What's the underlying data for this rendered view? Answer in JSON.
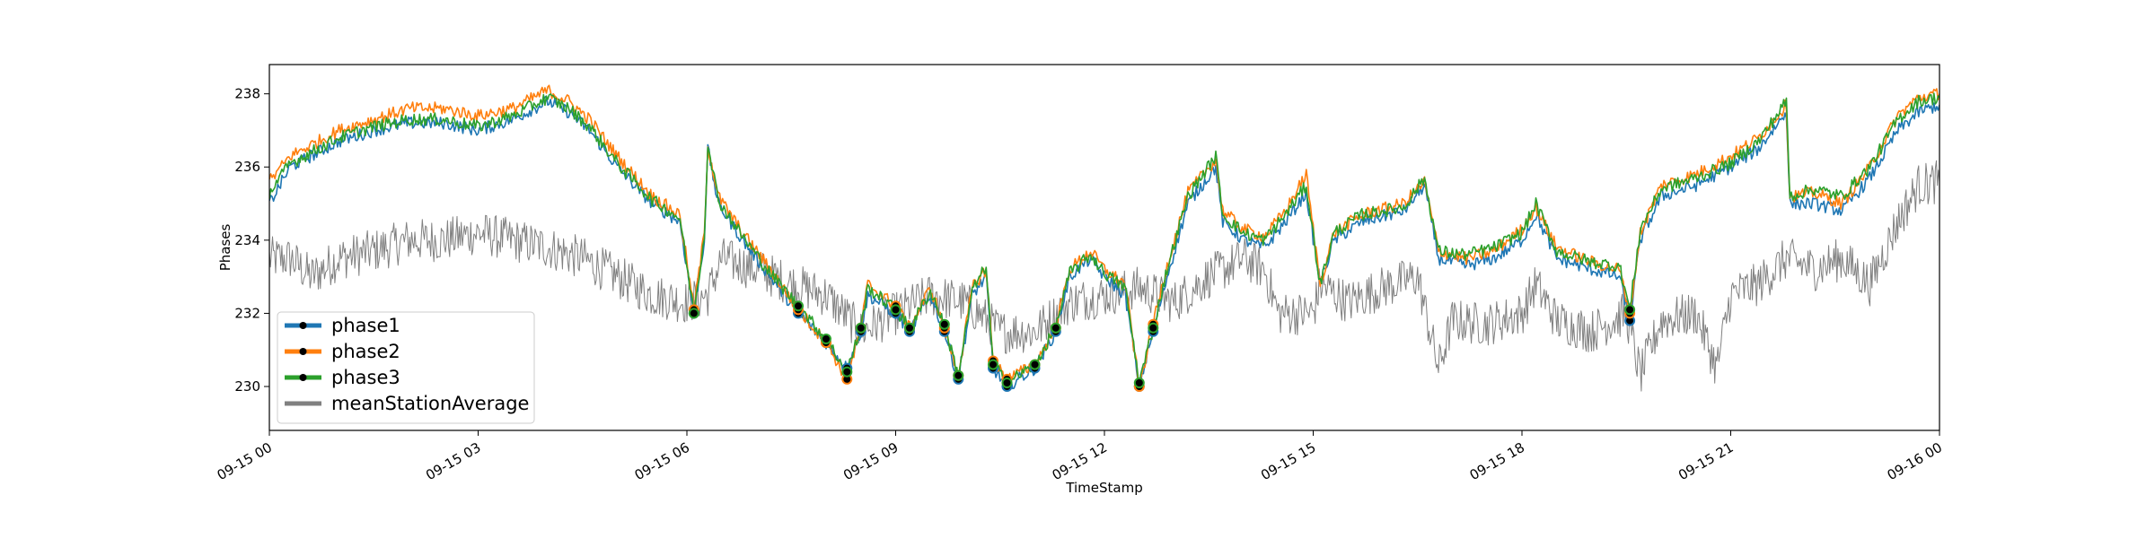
{
  "chart_data": {
    "type": "line",
    "title": "",
    "xlabel": "TimeStamp",
    "ylabel": "Phases",
    "x_ticks": [
      "09-15 00",
      "09-15 03",
      "09-15 06",
      "09-15 09",
      "09-15 12",
      "09-15 15",
      "09-15 18",
      "09-15 21",
      "09-16 00"
    ],
    "y_ticks": [
      "230",
      "232",
      "234",
      "236",
      "238"
    ],
    "x_range_hours": [
      0,
      24
    ],
    "ylim": [
      228.8,
      238.8
    ],
    "grid": false,
    "legend_position": "lower-left",
    "series": [
      {
        "name": "phase1",
        "color": "#1f77b4",
        "marker": "black dots at low points",
        "points": [
          [
            0.0,
            235.0
          ],
          [
            0.3,
            236.0
          ],
          [
            0.6,
            236.3
          ],
          [
            1.0,
            236.7
          ],
          [
            1.5,
            237.0
          ],
          [
            2.0,
            237.2
          ],
          [
            2.5,
            237.2
          ],
          [
            3.0,
            237.0
          ],
          [
            3.5,
            237.3
          ],
          [
            4.0,
            237.8
          ],
          [
            4.3,
            237.5
          ],
          [
            4.6,
            237.0
          ],
          [
            5.0,
            236.0
          ],
          [
            5.5,
            235.0
          ],
          [
            5.9,
            234.5
          ],
          [
            6.1,
            232.0
          ],
          [
            6.25,
            234.0
          ],
          [
            6.3,
            236.5
          ],
          [
            6.45,
            235.0
          ],
          [
            6.8,
            234.0
          ],
          [
            7.2,
            233.0
          ],
          [
            7.6,
            232.0
          ],
          [
            8.0,
            231.2
          ],
          [
            8.3,
            230.5
          ],
          [
            8.5,
            231.5
          ],
          [
            8.6,
            232.5
          ],
          [
            9.0,
            232.0
          ],
          [
            9.2,
            231.5
          ],
          [
            9.5,
            232.5
          ],
          [
            9.7,
            231.5
          ],
          [
            9.9,
            230.2
          ],
          [
            10.1,
            232.5
          ],
          [
            10.3,
            233.0
          ],
          [
            10.4,
            230.5
          ],
          [
            10.6,
            230.0
          ],
          [
            11.0,
            230.5
          ],
          [
            11.3,
            231.5
          ],
          [
            11.5,
            233.0
          ],
          [
            11.8,
            233.5
          ],
          [
            12.0,
            233.0
          ],
          [
            12.3,
            232.5
          ],
          [
            12.5,
            230.0
          ],
          [
            12.7,
            231.5
          ],
          [
            12.9,
            233.0
          ],
          [
            13.2,
            235.0
          ],
          [
            13.6,
            236.0
          ],
          [
            13.7,
            234.5
          ],
          [
            14.0,
            234.0
          ],
          [
            14.3,
            233.8
          ],
          [
            14.6,
            234.5
          ],
          [
            14.9,
            235.3
          ],
          [
            15.1,
            232.8
          ],
          [
            15.3,
            234.0
          ],
          [
            15.7,
            234.5
          ],
          [
            16.3,
            234.8
          ],
          [
            16.6,
            235.5
          ],
          [
            16.8,
            233.5
          ],
          [
            17.2,
            233.3
          ],
          [
            17.6,
            233.5
          ],
          [
            18.0,
            234.0
          ],
          [
            18.2,
            234.7
          ],
          [
            18.5,
            233.5
          ],
          [
            19.0,
            233.2
          ],
          [
            19.4,
            233.0
          ],
          [
            19.55,
            231.8
          ],
          [
            19.7,
            234.0
          ],
          [
            20.0,
            235.2
          ],
          [
            20.5,
            235.5
          ],
          [
            21.0,
            236.0
          ],
          [
            21.4,
            236.5
          ],
          [
            21.8,
            237.5
          ],
          [
            21.85,
            235.0
          ],
          [
            22.2,
            235.0
          ],
          [
            22.6,
            234.8
          ],
          [
            23.0,
            235.7
          ],
          [
            23.4,
            237.0
          ],
          [
            23.7,
            237.5
          ],
          [
            24.0,
            237.7
          ]
        ]
      },
      {
        "name": "phase2",
        "color": "#ff7f0e",
        "marker": "black dots at low points",
        "points": [
          [
            0.0,
            235.6
          ],
          [
            0.3,
            236.3
          ],
          [
            0.6,
            236.6
          ],
          [
            1.0,
            237.0
          ],
          [
            1.5,
            237.3
          ],
          [
            2.0,
            237.6
          ],
          [
            2.5,
            237.6
          ],
          [
            3.0,
            237.4
          ],
          [
            3.5,
            237.6
          ],
          [
            4.0,
            238.1
          ],
          [
            4.3,
            237.8
          ],
          [
            4.6,
            237.3
          ],
          [
            5.0,
            236.3
          ],
          [
            5.5,
            235.2
          ],
          [
            5.9,
            234.7
          ],
          [
            6.1,
            232.1
          ],
          [
            6.25,
            234.2
          ],
          [
            6.3,
            236.6
          ],
          [
            6.45,
            235.2
          ],
          [
            6.8,
            234.2
          ],
          [
            7.2,
            233.2
          ],
          [
            7.6,
            232.1
          ],
          [
            8.0,
            231.2
          ],
          [
            8.3,
            230.2
          ],
          [
            8.5,
            231.6
          ],
          [
            8.6,
            232.8
          ],
          [
            9.0,
            232.2
          ],
          [
            9.2,
            231.6
          ],
          [
            9.5,
            232.7
          ],
          [
            9.7,
            231.6
          ],
          [
            9.9,
            230.3
          ],
          [
            10.1,
            232.7
          ],
          [
            10.3,
            233.2
          ],
          [
            10.4,
            230.7
          ],
          [
            10.6,
            230.2
          ],
          [
            11.0,
            230.6
          ],
          [
            11.3,
            231.6
          ],
          [
            11.5,
            233.2
          ],
          [
            11.8,
            233.7
          ],
          [
            12.0,
            233.2
          ],
          [
            12.3,
            232.8
          ],
          [
            12.5,
            230.0
          ],
          [
            12.7,
            231.7
          ],
          [
            12.9,
            233.3
          ],
          [
            13.2,
            235.3
          ],
          [
            13.6,
            236.2
          ],
          [
            13.7,
            234.8
          ],
          [
            14.0,
            234.3
          ],
          [
            14.3,
            234.1
          ],
          [
            14.6,
            234.8
          ],
          [
            14.9,
            235.8
          ],
          [
            15.1,
            232.8
          ],
          [
            15.3,
            234.2
          ],
          [
            15.7,
            234.7
          ],
          [
            16.3,
            235.0
          ],
          [
            16.6,
            235.6
          ],
          [
            16.8,
            233.7
          ],
          [
            17.2,
            233.5
          ],
          [
            17.6,
            233.7
          ],
          [
            18.0,
            234.3
          ],
          [
            18.2,
            234.9
          ],
          [
            18.5,
            233.8
          ],
          [
            19.0,
            233.4
          ],
          [
            19.4,
            233.2
          ],
          [
            19.55,
            232.0
          ],
          [
            19.7,
            234.2
          ],
          [
            20.0,
            235.5
          ],
          [
            20.5,
            235.8
          ],
          [
            21.0,
            236.3
          ],
          [
            21.4,
            236.8
          ],
          [
            21.8,
            237.7
          ],
          [
            21.85,
            235.2
          ],
          [
            22.2,
            235.3
          ],
          [
            22.6,
            235.0
          ],
          [
            23.0,
            236.0
          ],
          [
            23.4,
            237.4
          ],
          [
            23.7,
            237.9
          ],
          [
            24.0,
            238.0
          ]
        ]
      },
      {
        "name": "phase3",
        "color": "#2ca02c",
        "marker": "black dots at low points",
        "points": [
          [
            0.0,
            235.3
          ],
          [
            0.3,
            236.1
          ],
          [
            0.6,
            236.4
          ],
          [
            1.0,
            236.8
          ],
          [
            1.5,
            237.1
          ],
          [
            2.0,
            237.3
          ],
          [
            2.5,
            237.3
          ],
          [
            3.0,
            237.1
          ],
          [
            3.5,
            237.4
          ],
          [
            4.0,
            237.9
          ],
          [
            4.3,
            237.6
          ],
          [
            4.6,
            237.1
          ],
          [
            5.0,
            236.1
          ],
          [
            5.5,
            235.1
          ],
          [
            5.9,
            234.6
          ],
          [
            6.1,
            232.0
          ],
          [
            6.25,
            234.1
          ],
          [
            6.3,
            236.7
          ],
          [
            6.45,
            235.1
          ],
          [
            6.8,
            234.1
          ],
          [
            7.2,
            233.1
          ],
          [
            7.6,
            232.2
          ],
          [
            8.0,
            231.3
          ],
          [
            8.3,
            230.4
          ],
          [
            8.5,
            231.6
          ],
          [
            8.6,
            232.7
          ],
          [
            9.0,
            232.1
          ],
          [
            9.2,
            231.6
          ],
          [
            9.5,
            232.6
          ],
          [
            9.7,
            231.7
          ],
          [
            9.9,
            230.3
          ],
          [
            10.1,
            232.6
          ],
          [
            10.3,
            233.3
          ],
          [
            10.4,
            230.6
          ],
          [
            10.6,
            230.1
          ],
          [
            11.0,
            230.6
          ],
          [
            11.3,
            231.6
          ],
          [
            11.5,
            233.1
          ],
          [
            11.8,
            233.6
          ],
          [
            12.0,
            233.1
          ],
          [
            12.3,
            232.7
          ],
          [
            12.5,
            230.1
          ],
          [
            12.7,
            231.6
          ],
          [
            12.9,
            233.2
          ],
          [
            13.2,
            235.2
          ],
          [
            13.6,
            236.3
          ],
          [
            13.7,
            234.7
          ],
          [
            14.0,
            234.2
          ],
          [
            14.3,
            234.0
          ],
          [
            14.6,
            234.7
          ],
          [
            14.9,
            235.5
          ],
          [
            15.1,
            232.8
          ],
          [
            15.3,
            234.2
          ],
          [
            15.7,
            234.7
          ],
          [
            16.3,
            234.9
          ],
          [
            16.6,
            235.7
          ],
          [
            16.8,
            233.7
          ],
          [
            17.2,
            233.6
          ],
          [
            17.6,
            233.8
          ],
          [
            18.0,
            234.2
          ],
          [
            18.2,
            235.0
          ],
          [
            18.5,
            233.7
          ],
          [
            19.0,
            233.4
          ],
          [
            19.4,
            233.3
          ],
          [
            19.55,
            232.1
          ],
          [
            19.7,
            234.3
          ],
          [
            20.0,
            235.4
          ],
          [
            20.5,
            235.7
          ],
          [
            21.0,
            236.1
          ],
          [
            21.4,
            236.7
          ],
          [
            21.8,
            237.8
          ],
          [
            21.85,
            235.2
          ],
          [
            22.2,
            235.4
          ],
          [
            22.6,
            235.2
          ],
          [
            23.0,
            236.0
          ],
          [
            23.4,
            237.3
          ],
          [
            23.7,
            237.8
          ],
          [
            24.0,
            237.9
          ]
        ]
      },
      {
        "name": "meanStationAverage",
        "color": "#808080",
        "points": [
          [
            0.0,
            233.5
          ],
          [
            0.3,
            233.5
          ],
          [
            0.6,
            233.0
          ],
          [
            1.0,
            233.5
          ],
          [
            1.5,
            233.7
          ],
          [
            2.0,
            234.0
          ],
          [
            2.5,
            234.0
          ],
          [
            3.0,
            234.2
          ],
          [
            3.5,
            234.0
          ],
          [
            4.0,
            233.8
          ],
          [
            4.5,
            233.5
          ],
          [
            5.0,
            233.0
          ],
          [
            5.5,
            232.5
          ],
          [
            6.0,
            232.3
          ],
          [
            6.3,
            232.5
          ],
          [
            6.5,
            233.5
          ],
          [
            7.0,
            233.2
          ],
          [
            7.5,
            232.8
          ],
          [
            8.0,
            232.5
          ],
          [
            8.5,
            231.5
          ],
          [
            9.0,
            232.0
          ],
          [
            9.5,
            232.5
          ],
          [
            10.0,
            232.3
          ],
          [
            10.5,
            231.5
          ],
          [
            11.0,
            231.5
          ],
          [
            11.5,
            232.3
          ],
          [
            12.0,
            232.5
          ],
          [
            12.5,
            232.7
          ],
          [
            13.0,
            232.3
          ],
          [
            13.5,
            233.0
          ],
          [
            14.0,
            233.5
          ],
          [
            14.3,
            233.2
          ],
          [
            14.5,
            232.0
          ],
          [
            15.0,
            232.0
          ],
          [
            15.1,
            232.8
          ],
          [
            15.5,
            232.3
          ],
          [
            16.0,
            232.7
          ],
          [
            16.5,
            233.0
          ],
          [
            16.8,
            230.5
          ],
          [
            17.0,
            231.8
          ],
          [
            17.5,
            231.7
          ],
          [
            18.0,
            232.0
          ],
          [
            18.2,
            232.8
          ],
          [
            18.5,
            231.8
          ],
          [
            19.0,
            231.5
          ],
          [
            19.5,
            232.0
          ],
          [
            19.7,
            230.3
          ],
          [
            20.0,
            231.8
          ],
          [
            20.5,
            232.0
          ],
          [
            20.8,
            230.5
          ],
          [
            21.0,
            232.5
          ],
          [
            21.4,
            232.8
          ],
          [
            21.8,
            233.5
          ],
          [
            22.2,
            233.2
          ],
          [
            22.6,
            233.5
          ],
          [
            23.0,
            232.8
          ],
          [
            23.4,
            234.5
          ],
          [
            23.7,
            235.5
          ],
          [
            24.0,
            235.6
          ]
        ]
      }
    ]
  }
}
